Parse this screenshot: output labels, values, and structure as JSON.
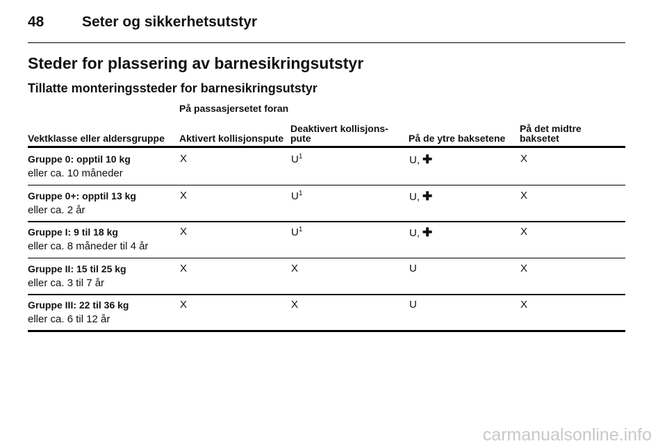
{
  "header": {
    "page_number": "48",
    "title": "Seter og sikkerhetsutstyr"
  },
  "section_title": "Steder for plassering av barnesikringsutstyr",
  "subtitle": "Tillatte monteringssteder for barnesikringsutstyr",
  "table": {
    "group_header": "På passasjersetet foran",
    "columns": [
      "Vektklasse eller aldersgruppe",
      "Aktivert kollisjonspute",
      "Deaktivert kollisjons-\npute",
      "På de ytre baksetene",
      "På det midtre\nbaksetet"
    ],
    "rows": [
      {
        "group": "Gruppe 0: opptil 10 kg",
        "age": "eller ca. 10 måneder",
        "cells": [
          {
            "text": "X"
          },
          {
            "text": "U",
            "sup": "1"
          },
          {
            "text": "U,",
            "symbol": "✚"
          },
          {
            "text": "X"
          }
        ]
      },
      {
        "group": "Gruppe 0+: opptil 13 kg",
        "age": "eller ca. 2 år",
        "cells": [
          {
            "text": "X"
          },
          {
            "text": "U",
            "sup": "1"
          },
          {
            "text": "U,",
            "symbol": "✚"
          },
          {
            "text": "X"
          }
        ]
      },
      {
        "group": "Gruppe I: 9 til 18 kg",
        "age": "eller ca. 8 måneder til 4 år",
        "cells": [
          {
            "text": "X"
          },
          {
            "text": "U",
            "sup": "1"
          },
          {
            "text": "U,",
            "symbol": "✚"
          },
          {
            "text": "X"
          }
        ]
      },
      {
        "group": "Gruppe II: 15 til 25 kg",
        "age": "eller ca. 3 til 7 år",
        "cells": [
          {
            "text": "X"
          },
          {
            "text": "X"
          },
          {
            "text": "U"
          },
          {
            "text": "X"
          }
        ]
      },
      {
        "group": "Gruppe III: 22 til 36 kg",
        "age": "eller ca. 6 til 12 år",
        "cells": [
          {
            "text": "X"
          },
          {
            "text": "X"
          },
          {
            "text": "U"
          },
          {
            "text": "X"
          }
        ]
      }
    ]
  },
  "watermark": "carmanualsonline.info"
}
